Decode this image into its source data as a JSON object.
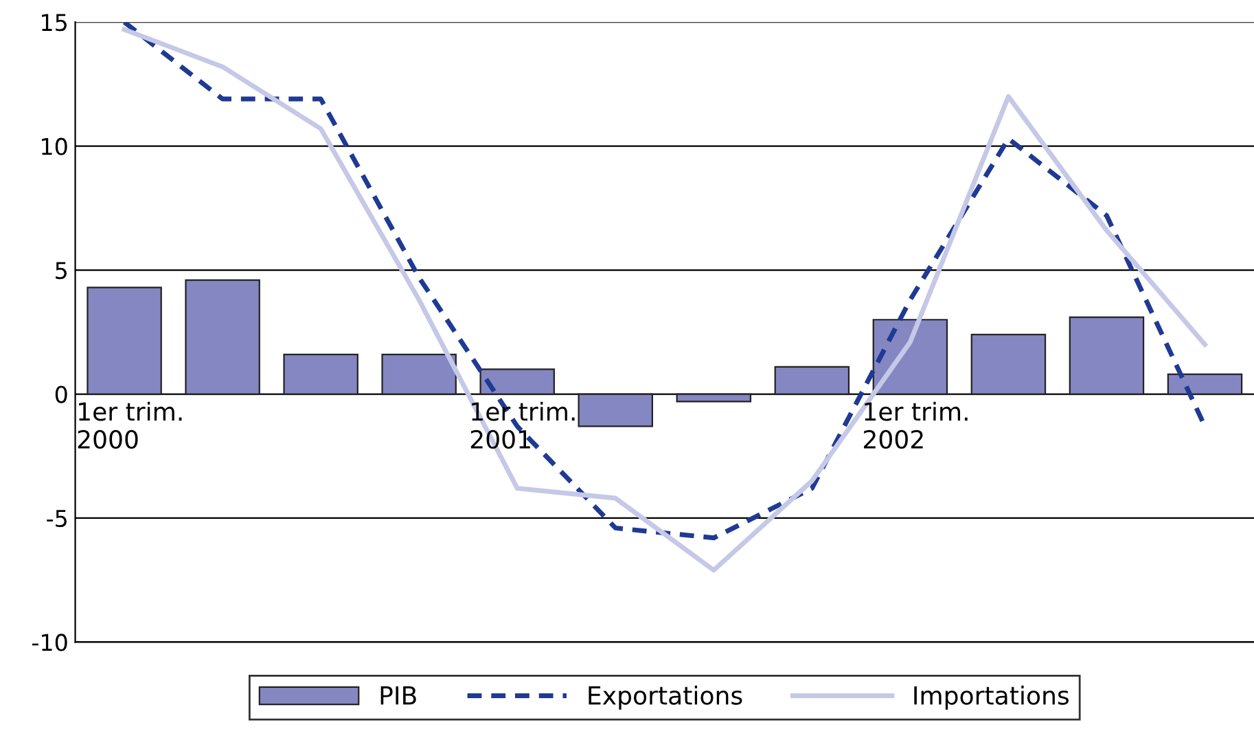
{
  "chart_data": {
    "type": "bar",
    "categories": [
      "1er trim.\n2000",
      null,
      null,
      null,
      "1er trim.\n2001",
      null,
      null,
      null,
      "1er trim.\n2002",
      null,
      null,
      null
    ],
    "series": [
      {
        "name": "PIB",
        "color": "#8487c2",
        "values": [
          4.3,
          4.6,
          1.6,
          1.6,
          1.0,
          -1.3,
          -0.3,
          1.1,
          3.0,
          2.4,
          3.1,
          0.8
        ]
      },
      {
        "name": "Exportations",
        "type": "line",
        "line_style": "dashed",
        "color": "#1f3a93",
        "values": [
          15.0,
          11.9,
          11.9,
          4.7,
          -1.3,
          -5.4,
          -5.8,
          -3.8,
          3.8,
          10.3,
          7.2,
          -1.3
        ]
      },
      {
        "name": "Importations",
        "type": "line",
        "line_style": "solid",
        "color": "#c5c8e6",
        "values": [
          14.7,
          13.2,
          10.7,
          3.8,
          -3.8,
          -4.2,
          -7.1,
          -3.5,
          2.1,
          12.0,
          6.6,
          2.0
        ]
      }
    ],
    "ylim": [
      -10,
      15
    ],
    "yticks": [
      -10,
      -5,
      0,
      5,
      10,
      15
    ],
    "grid": "y",
    "legend": "bottom"
  }
}
